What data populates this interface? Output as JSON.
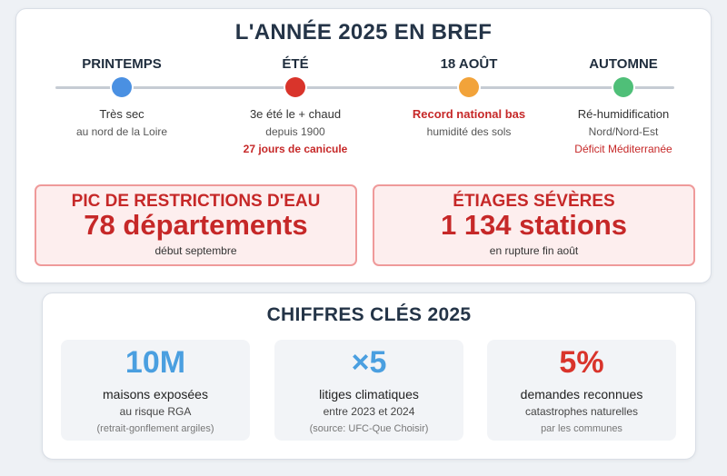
{
  "summary": {
    "title": "L'ANNÉE 2025 EN BREF",
    "timeline": [
      {
        "heading": "PRINTEMPS",
        "line1": "Très sec",
        "line2": "au nord de la Loire",
        "line3": "",
        "color": "#4a90e2"
      },
      {
        "heading": "ÉTÉ",
        "line1": "3e été le + chaud",
        "line2": "depuis 1900",
        "line3": "27 jours de canicule",
        "color": "#d9342b"
      },
      {
        "heading": "18 AOÛT",
        "line1": "Record national bas",
        "line2": "humidité des sols",
        "line3": "",
        "color": "#f2a33a"
      },
      {
        "heading": "AUTOMNE",
        "line1": "Ré-humidification",
        "line2": "Nord/Nord-Est",
        "line3": "Déficit Méditerranée",
        "color": "#4fbf78"
      }
    ],
    "alerts": [
      {
        "title": "PIC DE RESTRICTIONS D'EAU",
        "value": "78 départements",
        "subtitle": "début septembre"
      },
      {
        "title": "ÉTIAGES SÉVÈRES",
        "value": "1 134 stations",
        "subtitle": "en rupture fin août"
      }
    ]
  },
  "key_figures": {
    "title": "CHIFFRES CLÉS 2025",
    "stats": [
      {
        "value": "10M",
        "label": "maisons exposées",
        "sub1": "au risque RGA",
        "sub2": "(retrait-gonflement argiles)",
        "color": "#4a9fe0"
      },
      {
        "value": "×5",
        "label": "litiges climatiques",
        "sub1": "entre 2023 et 2024",
        "sub2": "(source: UFC-Que Choisir)",
        "color": "#4a9fe0"
      },
      {
        "value": "5%",
        "label": "demandes reconnues",
        "sub1": "catastrophes naturelles",
        "sub2": "par les communes",
        "color": "#d9342b"
      }
    ]
  }
}
